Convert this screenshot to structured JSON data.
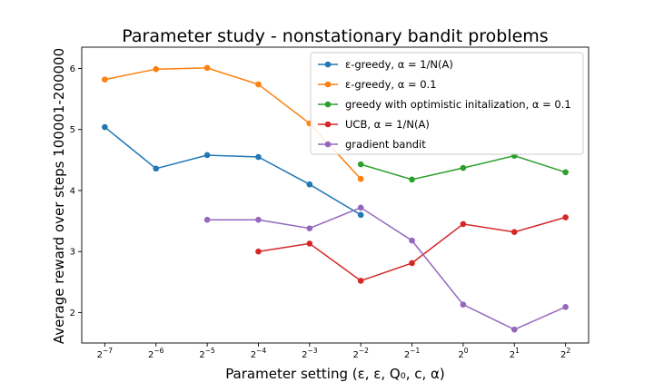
{
  "chart_data": {
    "type": "line",
    "title": "Parameter study - nonstationary bandit problems",
    "xlabel": "Parameter setting (ε, ε, Q₀, c, α)",
    "ylabel": "Average reward over steps 100001-200000",
    "x_exponents": [
      -7,
      -6,
      -5,
      -4,
      -3,
      -2,
      -1,
      0,
      1,
      2
    ],
    "x_tick_base": "2",
    "x_tick_exponents": [
      "−7",
      "−6",
      "−5",
      "−4",
      "−3",
      "−2",
      "−1",
      "0",
      "1",
      "2"
    ],
    "y_ticks": [
      "2",
      "3",
      "4",
      "5",
      "6"
    ],
    "ylim": [
      1.5,
      6.35
    ],
    "grid": false,
    "legend_position": "top-right",
    "series": [
      {
        "name": "ε-greedy, α = 1/N(A)",
        "color": "#1f77b4",
        "x_exp": [
          -7,
          -6,
          -5,
          -4,
          -3,
          -2
        ],
        "values": [
          5.04,
          4.36,
          4.58,
          4.55,
          4.1,
          3.6
        ]
      },
      {
        "name": "ε-greedy, α = 0.1",
        "color": "#ff7f0e",
        "x_exp": [
          -7,
          -6,
          -5,
          -4,
          -3,
          -2
        ],
        "values": [
          5.82,
          5.99,
          6.01,
          5.74,
          5.1,
          4.19
        ]
      },
      {
        "name": "greedy with optimistic initalization, α = 0.1",
        "color": "#2ca02c",
        "x_exp": [
          -2,
          -1,
          0,
          1,
          2
        ],
        "values": [
          4.43,
          4.18,
          4.37,
          4.57,
          4.3
        ]
      },
      {
        "name": "UCB, α = 1/N(A)",
        "color": "#d62728",
        "x_exp": [
          -4,
          -3,
          -2,
          -1,
          0,
          1,
          2
        ],
        "values": [
          3.0,
          3.13,
          2.52,
          2.81,
          3.45,
          3.32,
          3.56
        ]
      },
      {
        "name": "gradient bandit",
        "color": "#9467bd",
        "x_exp": [
          -5,
          -4,
          -3,
          -2,
          -1,
          0,
          1,
          2
        ],
        "values": [
          3.52,
          3.52,
          3.38,
          3.72,
          3.18,
          2.13,
          1.72,
          2.09
        ]
      }
    ]
  }
}
